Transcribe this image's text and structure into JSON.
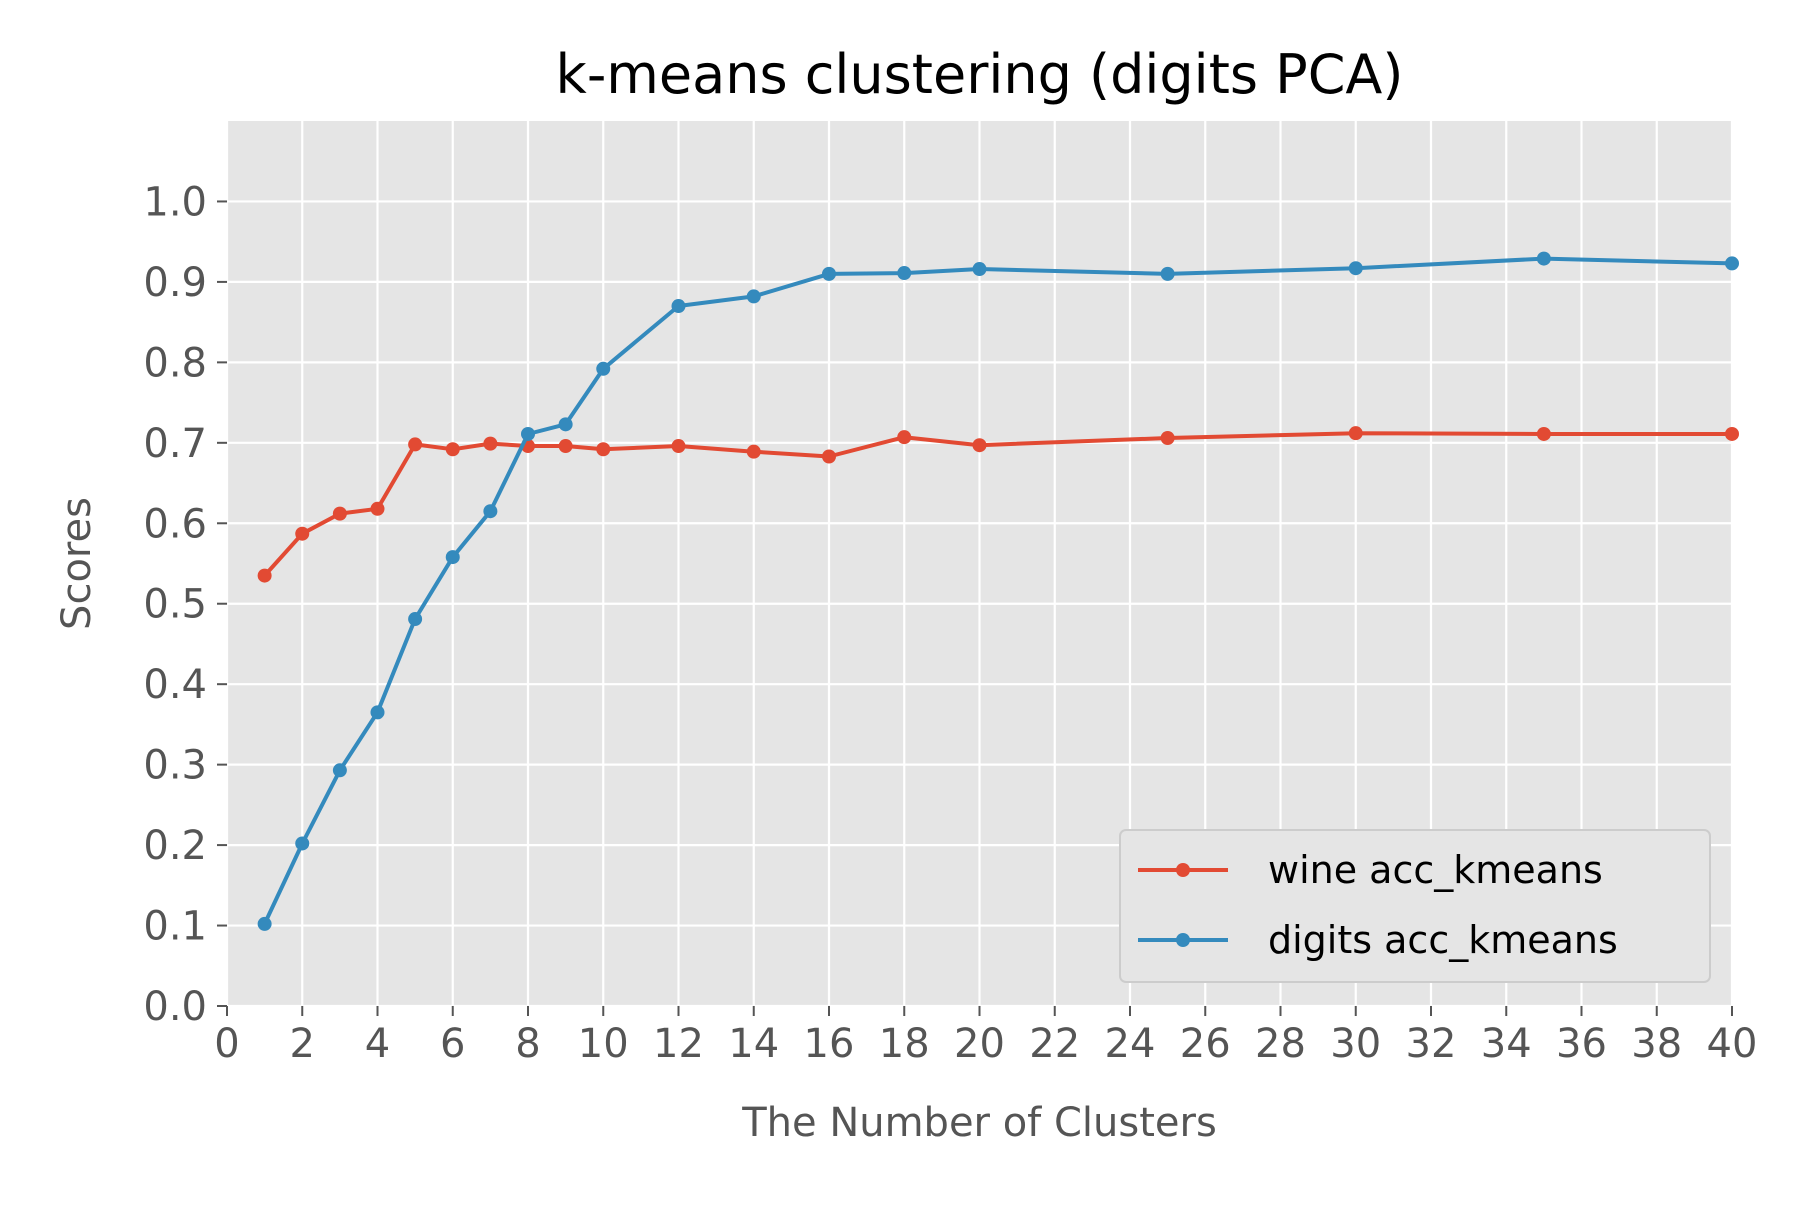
{
  "chart_data": {
    "type": "line",
    "title": "k-means clustering (digits PCA)",
    "xlabel": "The Number of Clusters",
    "ylabel": "Scores",
    "xlim": [
      0,
      40
    ],
    "ylim": [
      0,
      1.1
    ],
    "xticks": [
      0,
      2,
      4,
      6,
      8,
      10,
      12,
      14,
      16,
      18,
      20,
      22,
      24,
      26,
      28,
      30,
      32,
      34,
      36,
      38,
      40
    ],
    "yticks": [
      0.0,
      0.1,
      0.2,
      0.3,
      0.4,
      0.5,
      0.6,
      0.7,
      0.8,
      0.9,
      1.0
    ],
    "ytick_labels": [
      "0.0",
      "0.1",
      "0.2",
      "0.3",
      "0.4",
      "0.5",
      "0.6",
      "0.7",
      "0.8",
      "0.9",
      "1.0"
    ],
    "grid": true,
    "legend_position": "lower-right",
    "background": "#e5e5e5",
    "x": [
      1,
      2,
      3,
      4,
      5,
      6,
      7,
      8,
      9,
      10,
      12,
      14,
      16,
      18,
      20,
      25,
      30,
      35,
      40
    ],
    "series": [
      {
        "name": "wine acc_kmeans",
        "color": "#e24a33",
        "values": [
          0.535,
          0.587,
          0.612,
          0.618,
          0.698,
          0.692,
          0.699,
          0.696,
          0.696,
          0.692,
          0.696,
          0.689,
          0.683,
          0.707,
          0.697,
          0.706,
          0.712,
          0.711,
          0.711
        ]
      },
      {
        "name": "digits acc_kmeans",
        "color": "#348abd",
        "values": [
          0.102,
          0.202,
          0.293,
          0.365,
          0.481,
          0.558,
          0.615,
          0.711,
          0.723,
          0.792,
          0.87,
          0.882,
          0.91,
          0.911,
          0.916,
          0.91,
          0.917,
          0.929,
          0.923
        ]
      }
    ]
  }
}
